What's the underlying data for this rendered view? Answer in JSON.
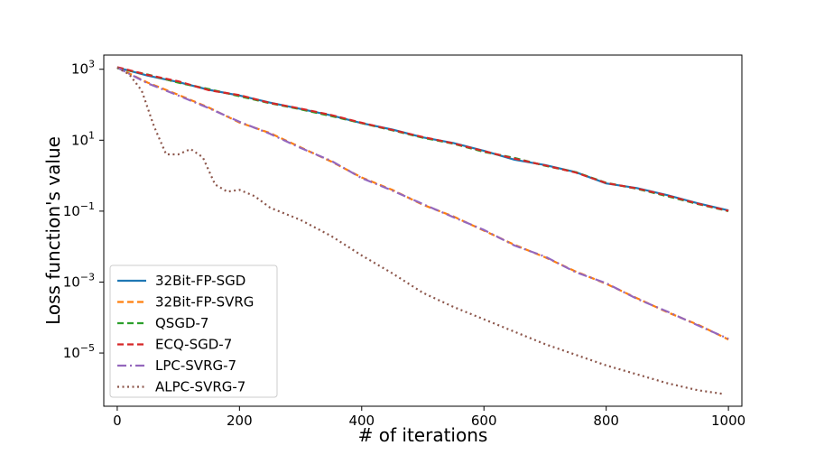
{
  "chart_data": {
    "type": "line",
    "title": "",
    "xlabel": "# of iterations",
    "ylabel": "Loss function's value",
    "xlim": [
      -22,
      1022
    ],
    "ylim_log10": [
      -6.5,
      3.4
    ],
    "y_scale": "log",
    "grid": false,
    "legend_position": "lower-left",
    "x_ticks": [
      {
        "value": 0,
        "label": "0"
      },
      {
        "value": 200,
        "label": "200"
      },
      {
        "value": 400,
        "label": "400"
      },
      {
        "value": 600,
        "label": "600"
      },
      {
        "value": 800,
        "label": "800"
      },
      {
        "value": 1000,
        "label": "1000"
      }
    ],
    "y_ticks": [
      {
        "exp": 3,
        "base": "10",
        "sup": "3"
      },
      {
        "exp": 1,
        "base": "10",
        "sup": "1"
      },
      {
        "exp": -1,
        "base": "10",
        "sup": "−1"
      },
      {
        "exp": -3,
        "base": "10",
        "sup": "−3"
      },
      {
        "exp": -5,
        "base": "10",
        "sup": "−5"
      }
    ],
    "series": [
      {
        "name": "32Bit-FP-SGD",
        "color": "#1f77b4",
        "dash": "solid",
        "width": 2.2,
        "x": [
          0,
          50,
          100,
          150,
          200,
          250,
          300,
          350,
          400,
          450,
          500,
          550,
          600,
          650,
          700,
          750,
          800,
          850,
          900,
          950,
          1000
        ],
        "log10_y": [
          3.05,
          2.82,
          2.64,
          2.42,
          2.26,
          2.06,
          1.88,
          1.7,
          1.48,
          1.3,
          1.08,
          0.92,
          0.7,
          0.45,
          0.3,
          0.1,
          -0.22,
          -0.35,
          -0.55,
          -0.78,
          -0.98
        ]
      },
      {
        "name": "32Bit-FP-SVRG",
        "color": "#ff7f0e",
        "dash": "dashed",
        "width": 2.2,
        "x": [
          0,
          50,
          100,
          150,
          200,
          250,
          300,
          350,
          400,
          450,
          500,
          550,
          600,
          650,
          700,
          750,
          800,
          850,
          900,
          950,
          1000
        ],
        "log10_y": [
          3.05,
          2.62,
          2.28,
          1.92,
          1.5,
          1.2,
          0.8,
          0.4,
          -0.05,
          -0.4,
          -0.82,
          -1.15,
          -1.55,
          -1.95,
          -2.3,
          -2.7,
          -3.05,
          -3.45,
          -3.85,
          -4.2,
          -4.62
        ]
      },
      {
        "name": "QSGD-7",
        "color": "#2ca02c",
        "dash": "dashed",
        "width": 2.2,
        "x": [
          0,
          50,
          100,
          150,
          200,
          250,
          300,
          350,
          400,
          450,
          500,
          550,
          600,
          650,
          700,
          750,
          800,
          850,
          900,
          950,
          1000
        ],
        "log10_y": [
          3.03,
          2.85,
          2.62,
          2.44,
          2.24,
          2.04,
          1.87,
          1.68,
          1.48,
          1.28,
          1.07,
          0.9,
          0.67,
          0.5,
          0.28,
          0.1,
          -0.2,
          -0.37,
          -0.58,
          -0.8,
          -1.0
        ]
      },
      {
        "name": "ECQ-SGD-7",
        "color": "#d62728",
        "dash": "dashed",
        "width": 2.2,
        "x": [
          0,
          50,
          100,
          150,
          200,
          250,
          300,
          350,
          400,
          450,
          500,
          550,
          600,
          650,
          700,
          750,
          800,
          850,
          900,
          950,
          1000
        ],
        "log10_y": [
          3.06,
          2.84,
          2.66,
          2.41,
          2.27,
          2.05,
          1.89,
          1.71,
          1.49,
          1.29,
          1.09,
          0.91,
          0.69,
          0.48,
          0.29,
          0.09,
          -0.21,
          -0.36,
          -0.56,
          -0.79,
          -0.99
        ]
      },
      {
        "name": "LPC-SVRG-7",
        "color": "#9467bd",
        "dash": "dashdot",
        "width": 2.2,
        "x": [
          0,
          50,
          100,
          150,
          200,
          250,
          300,
          350,
          400,
          450,
          500,
          550,
          600,
          650,
          700,
          750,
          800,
          850,
          900,
          950,
          1000
        ],
        "log10_y": [
          3.05,
          2.6,
          2.26,
          1.9,
          1.52,
          1.18,
          0.78,
          0.42,
          -0.07,
          -0.42,
          -0.8,
          -1.17,
          -1.53,
          -1.97,
          -2.28,
          -2.72,
          -3.03,
          -3.47,
          -3.83,
          -4.22,
          -4.6
        ]
      },
      {
        "name": "ALPC-SVRG-7",
        "color": "#8c564b",
        "dash": "dotted",
        "width": 2.2,
        "x": [
          0,
          20,
          40,
          60,
          80,
          100,
          120,
          140,
          160,
          180,
          200,
          225,
          250,
          300,
          350,
          400,
          450,
          500,
          550,
          600,
          650,
          700,
          750,
          800,
          850,
          900,
          950,
          990
        ],
        "log10_y": [
          3.05,
          2.85,
          2.4,
          1.4,
          0.6,
          0.6,
          0.75,
          0.52,
          -0.25,
          -0.45,
          -0.4,
          -0.58,
          -0.9,
          -1.25,
          -1.7,
          -2.25,
          -2.75,
          -3.3,
          -3.7,
          -4.05,
          -4.4,
          -4.75,
          -5.05,
          -5.35,
          -5.6,
          -5.85,
          -6.05,
          -6.15
        ]
      }
    ]
  }
}
